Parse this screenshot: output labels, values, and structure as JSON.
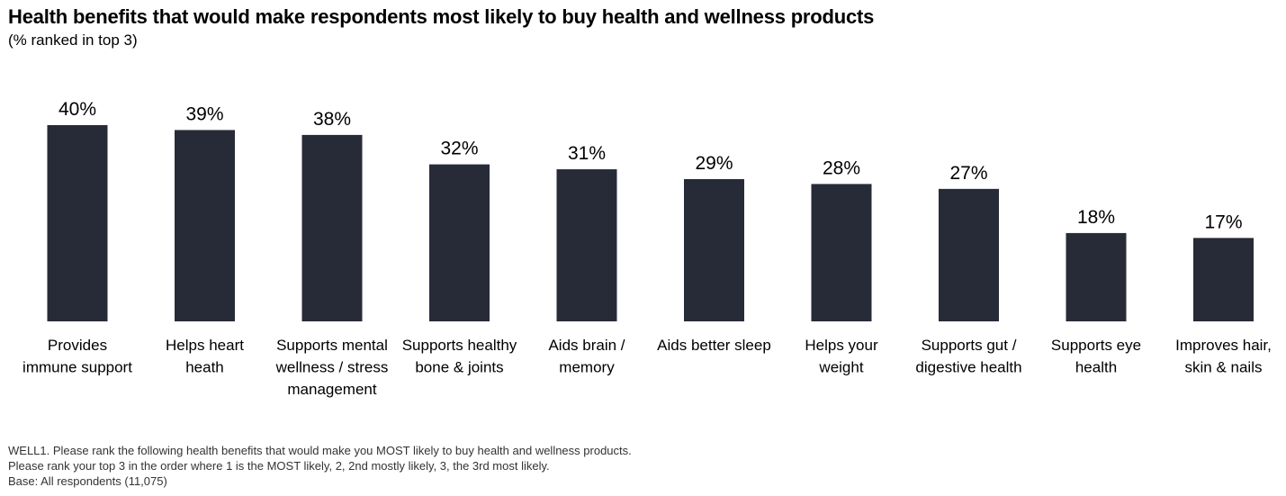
{
  "header": {
    "title": "Health benefits that would make respondents most likely to buy health and wellness products",
    "subtitle": "(% ranked in top 3)"
  },
  "footnote": {
    "line1": "WELL1. Please rank the following health benefits that would make you MOST likely to buy health and wellness products.",
    "line2": "Please rank your top 3 in the order where 1 is the MOST likely, 2, 2nd mostly likely, 3, the 3rd most likely.",
    "line3": "Base: All respondents (11,075)"
  },
  "colors": {
    "bar": "#272b38"
  },
  "chart_data": {
    "type": "bar",
    "title": "Health benefits that would make respondents most likely to buy health and wellness products",
    "subtitle": "(% ranked in top 3)",
    "xlabel": "",
    "ylabel": "",
    "ylim": [
      0,
      40
    ],
    "grid": false,
    "legend": "none",
    "unit": "%",
    "categories": [
      [
        "Provides",
        "immune support"
      ],
      [
        "Helps heart",
        "heath"
      ],
      [
        "Supports mental",
        "wellness / stress",
        "management"
      ],
      [
        "Supports healthy",
        "bone & joints"
      ],
      [
        "Aids brain /",
        "memory"
      ],
      [
        "Aids better sleep"
      ],
      [
        "Helps your",
        "weight"
      ],
      [
        "Supports gut /",
        "digestive health"
      ],
      [
        "Supports eye",
        "health"
      ],
      [
        "Improves hair,",
        "skin & nails"
      ]
    ],
    "values": [
      40,
      39,
      38,
      32,
      31,
      29,
      28,
      27,
      18,
      17
    ]
  }
}
